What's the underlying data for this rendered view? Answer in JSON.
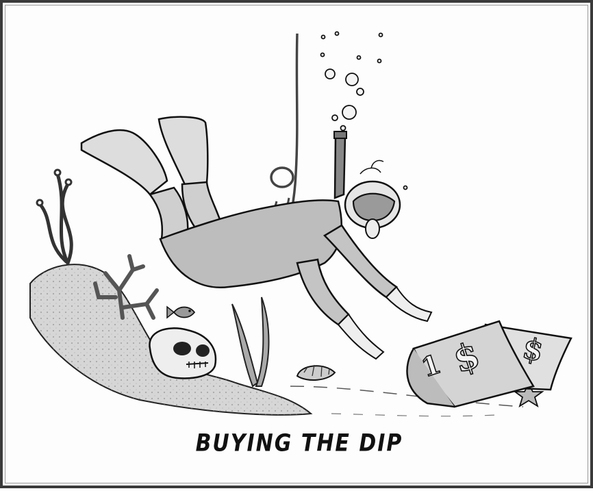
{
  "caption": "BUYING THE DIP",
  "banknotes": [
    {
      "symbol": "$",
      "denomination": "1"
    },
    {
      "symbol": "$",
      "denomination": ""
    }
  ],
  "colors": {
    "ink": "#111111",
    "wash": "#c9c9c9",
    "frame": "#3a3a3a",
    "paper": "#fdfdfd"
  }
}
